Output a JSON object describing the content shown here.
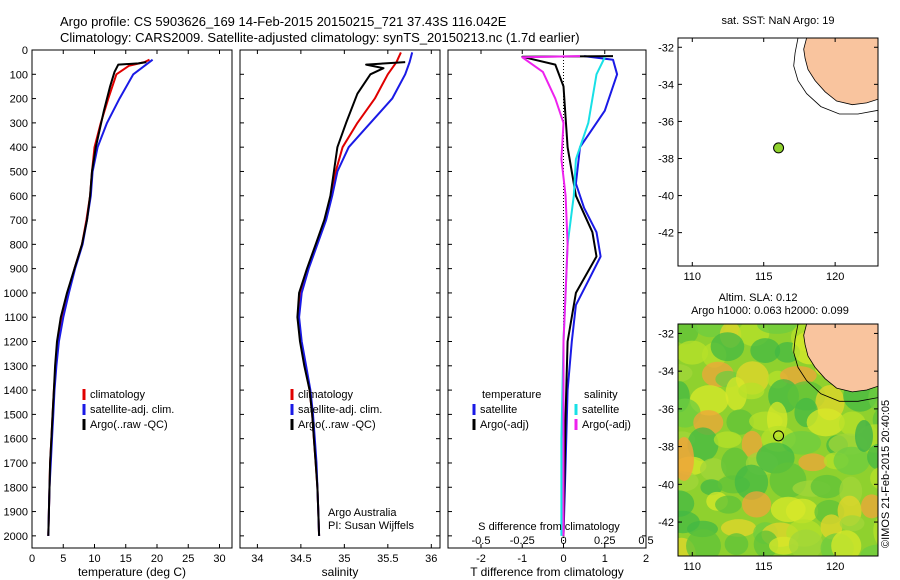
{
  "header": {
    "title_line1": "Argo profile: CS 5903626_169 14-Feb-2015 20150215_721 37.43S 116.042E",
    "title_line2": "Climatology: CARS2009. Satellite-adjusted climatology: synTS_20150213.nc (1.7d earlier)"
  },
  "side_credit": "©IMOS 21-Feb-2015 20:40:05",
  "colors": {
    "climatology": "#e00000",
    "satellite": "#1a1ae6",
    "argo": "#000000",
    "sal_satellite": "#18e0e6",
    "sal_argo": "#ee22ee",
    "land": "#f9c49e"
  },
  "chart_data": [
    {
      "id": "temperature",
      "type": "line",
      "xlabel": "temperature (deg C)",
      "ylabel": "",
      "xlim": [
        0,
        32
      ],
      "ylim": [
        2050,
        0
      ],
      "xticks": [
        0,
        5,
        10,
        15,
        20,
        25,
        30
      ],
      "yticks": [
        0,
        100,
        200,
        300,
        400,
        500,
        600,
        700,
        800,
        900,
        1000,
        1100,
        1200,
        1300,
        1400,
        1500,
        1600,
        1700,
        1800,
        1900,
        2000
      ],
      "legend": [
        "climatology",
        "satellite-adj. clim.",
        "Argo(..raw -QC)"
      ],
      "series": [
        {
          "name": "climatology",
          "color": "climatology",
          "points": [
            [
              18.8,
              40
            ],
            [
              18.0,
              50
            ],
            [
              15.5,
              65
            ],
            [
              13.5,
              100
            ],
            [
              12.2,
              200
            ],
            [
              11.0,
              300
            ],
            [
              10.0,
              400
            ],
            [
              9.6,
              500
            ],
            [
              9.3,
              600
            ],
            [
              8.7,
              700
            ],
            [
              8.0,
              800
            ],
            [
              6.8,
              900
            ],
            [
              5.8,
              1000
            ],
            [
              4.9,
              1100
            ],
            [
              4.2,
              1200
            ],
            [
              3.8,
              1300
            ],
            [
              3.5,
              1400
            ],
            [
              3.3,
              1500
            ],
            [
              3.1,
              1600
            ],
            [
              2.9,
              1700
            ],
            [
              2.8,
              1800
            ],
            [
              2.7,
              1900
            ],
            [
              2.6,
              2000
            ]
          ]
        },
        {
          "name": "satellite-adj. clim.",
          "color": "satellite",
          "points": [
            [
              19.3,
              40
            ],
            [
              18.8,
              50
            ],
            [
              17.5,
              75
            ],
            [
              16.2,
              100
            ],
            [
              14.0,
              200
            ],
            [
              12.0,
              300
            ],
            [
              10.5,
              400
            ],
            [
              9.7,
              500
            ],
            [
              9.4,
              600
            ],
            [
              8.8,
              700
            ],
            [
              8.1,
              800
            ],
            [
              6.9,
              900
            ],
            [
              5.9,
              1000
            ],
            [
              5.0,
              1100
            ],
            [
              4.3,
              1200
            ],
            [
              3.9,
              1300
            ],
            [
              3.6,
              1400
            ],
            [
              3.4,
              1500
            ],
            [
              3.2,
              1600
            ],
            [
              3.0,
              1700
            ],
            [
              2.8,
              1800
            ],
            [
              2.7,
              1900
            ],
            [
              2.6,
              2000
            ]
          ]
        },
        {
          "name": "Argo(..raw -QC)",
          "color": "argo",
          "points": [
            [
              18.3,
              50
            ],
            [
              17.0,
              55
            ],
            [
              13.8,
              60
            ],
            [
              13.2,
              90
            ],
            [
              12.5,
              150
            ],
            [
              11.5,
              250
            ],
            [
              10.2,
              400
            ],
            [
              9.6,
              500
            ],
            [
              9.3,
              600
            ],
            [
              8.8,
              700
            ],
            [
              8.0,
              800
            ],
            [
              6.8,
              900
            ],
            [
              5.6,
              1000
            ],
            [
              4.6,
              1100
            ],
            [
              4.0,
              1200
            ],
            [
              3.7,
              1300
            ],
            [
              3.5,
              1400
            ],
            [
              3.3,
              1500
            ],
            [
              3.1,
              1600
            ],
            [
              2.9,
              1700
            ],
            [
              2.8,
              1800
            ],
            [
              2.7,
              1900
            ],
            [
              2.6,
              2000
            ]
          ]
        }
      ]
    },
    {
      "id": "salinity",
      "type": "line",
      "xlabel": "salinity",
      "xlim": [
        33.8,
        36.1
      ],
      "ylim": [
        2050,
        0
      ],
      "xticks": [
        34,
        34.5,
        35,
        35.5,
        36
      ],
      "legend": [
        "climatology",
        "satellite-adj. clim.",
        "Argo(..raw -QC)"
      ],
      "annotation": [
        "Argo Australia",
        "PI: Susan Wijffels"
      ],
      "series": [
        {
          "name": "climatology",
          "color": "climatology",
          "points": [
            [
              35.65,
              10
            ],
            [
              35.6,
              50
            ],
            [
              35.5,
              100
            ],
            [
              35.35,
              200
            ],
            [
              35.15,
              300
            ],
            [
              34.98,
              400
            ],
            [
              34.9,
              500
            ],
            [
              34.85,
              600
            ],
            [
              34.78,
              700
            ],
            [
              34.68,
              800
            ],
            [
              34.58,
              900
            ],
            [
              34.5,
              1000
            ],
            [
              34.47,
              1100
            ],
            [
              34.5,
              1200
            ],
            [
              34.55,
              1300
            ],
            [
              34.6,
              1400
            ],
            [
              34.63,
              1500
            ],
            [
              34.65,
              1600
            ],
            [
              34.67,
              1700
            ],
            [
              34.69,
              1800
            ],
            [
              34.7,
              1900
            ],
            [
              34.71,
              2000
            ]
          ]
        },
        {
          "name": "satellite-adj. clim.",
          "color": "satellite",
          "points": [
            [
              35.78,
              10
            ],
            [
              35.75,
              50
            ],
            [
              35.7,
              100
            ],
            [
              35.55,
              200
            ],
            [
              35.3,
              300
            ],
            [
              35.05,
              400
            ],
            [
              34.92,
              500
            ],
            [
              34.86,
              600
            ],
            [
              34.79,
              700
            ],
            [
              34.69,
              800
            ],
            [
              34.59,
              900
            ],
            [
              34.51,
              1000
            ],
            [
              34.48,
              1100
            ],
            [
              34.51,
              1200
            ],
            [
              34.56,
              1300
            ],
            [
              34.61,
              1400
            ],
            [
              34.64,
              1500
            ],
            [
              34.66,
              1600
            ],
            [
              34.68,
              1700
            ],
            [
              34.69,
              1800
            ],
            [
              34.7,
              1900
            ],
            [
              34.71,
              2000
            ]
          ]
        },
        {
          "name": "Argo(..raw -QC)",
          "color": "argo",
          "points": [
            [
              35.7,
              50
            ],
            [
              35.25,
              60
            ],
            [
              35.45,
              75
            ],
            [
              35.3,
              100
            ],
            [
              35.15,
              180
            ],
            [
              35.02,
              300
            ],
            [
              34.92,
              400
            ],
            [
              34.88,
              500
            ],
            [
              34.84,
              600
            ],
            [
              34.77,
              700
            ],
            [
              34.67,
              800
            ],
            [
              34.57,
              900
            ],
            [
              34.48,
              1000
            ],
            [
              34.46,
              1100
            ],
            [
              34.49,
              1200
            ],
            [
              34.54,
              1300
            ],
            [
              34.6,
              1400
            ],
            [
              34.63,
              1500
            ],
            [
              34.65,
              1600
            ],
            [
              34.67,
              1700
            ],
            [
              34.69,
              1800
            ],
            [
              34.7,
              1900
            ],
            [
              34.71,
              2000
            ]
          ]
        }
      ]
    },
    {
      "id": "difference",
      "type": "line",
      "xlabel": "T difference from climatology",
      "xlabel_top": "S difference from climatology",
      "xlim": [
        -2.8,
        2.0
      ],
      "ylim": [
        2050,
        0
      ],
      "xticks": [
        -2,
        -1,
        0,
        1,
        2
      ],
      "xticks_s": [
        -0.5,
        -0.25,
        0,
        0.25,
        0.5
      ],
      "legend_temperature": [
        "temperature",
        "satellite",
        "Argo(-adj)"
      ],
      "legend_salinity": [
        "salinity",
        "satellite",
        "Argo(-adj)"
      ],
      "series": [
        {
          "name": "T satellite",
          "color": "satellite",
          "points": [
            [
              0.5,
              25
            ],
            [
              1.2,
              40
            ],
            [
              1.3,
              100
            ],
            [
              1.0,
              250
            ],
            [
              0.4,
              400
            ],
            [
              0.3,
              550
            ],
            [
              0.5,
              650
            ],
            [
              0.8,
              750
            ],
            [
              0.9,
              850
            ],
            [
              0.6,
              950
            ],
            [
              0.3,
              1050
            ],
            [
              0.2,
              1200
            ],
            [
              0.1,
              1400
            ],
            [
              0.05,
              1700
            ],
            [
              0.0,
              2000
            ]
          ]
        },
        {
          "name": "T Argo(-adj)",
          "color": "argo",
          "points": [
            [
              1.2,
              25
            ],
            [
              -1.0,
              28
            ],
            [
              -0.2,
              60
            ],
            [
              0.0,
              150
            ],
            [
              0.1,
              400
            ],
            [
              0.3,
              600
            ],
            [
              0.7,
              750
            ],
            [
              0.8,
              850
            ],
            [
              0.3,
              1000
            ],
            [
              0.1,
              1200
            ],
            [
              0.05,
              1500
            ],
            [
              0.0,
              2000
            ]
          ]
        },
        {
          "name": "S satellite",
          "color": "sal_satellite",
          "points": [
            [
              1.0,
              30
            ],
            [
              0.8,
              100
            ],
            [
              0.6,
              300
            ],
            [
              0.3,
              450
            ],
            [
              0.25,
              600
            ],
            [
              0.1,
              800
            ],
            [
              0.0,
              1200
            ],
            [
              -0.05,
              1600
            ],
            [
              -0.05,
              2000
            ]
          ]
        },
        {
          "name": "S Argo(-adj)",
          "color": "sal_argo",
          "points": [
            [
              0.4,
              25
            ],
            [
              -1.0,
              30
            ],
            [
              -0.5,
              90
            ],
            [
              -0.2,
              200
            ],
            [
              0.0,
              300
            ],
            [
              -0.05,
              450
            ],
            [
              0.05,
              600
            ],
            [
              0.1,
              800
            ],
            [
              0.05,
              1000
            ],
            [
              0.0,
              1200
            ],
            [
              0.0,
              2000
            ]
          ]
        }
      ]
    },
    {
      "id": "map_sst",
      "type": "scatter",
      "title": "sat. SST: NaN  Argo: 19",
      "xlim": [
        109,
        123
      ],
      "ylim": [
        -43.8,
        -31.5
      ],
      "xticks": [
        110,
        115,
        120
      ],
      "yticks": [
        -32,
        -34,
        -36,
        -38,
        -40,
        -42
      ],
      "points": [
        [
          116.04,
          -37.43
        ]
      ]
    },
    {
      "id": "map_sla",
      "type": "heatmap",
      "title_line1": "Altim. SLA: 0.12",
      "title_line2": "Argo h1000: 0.063 h2000: 0.099",
      "xlim": [
        109,
        123
      ],
      "ylim": [
        -43.8,
        -31.5
      ],
      "xticks": [
        110,
        115,
        120
      ],
      "yticks": [
        -32,
        -34,
        -36,
        -38,
        -40,
        -42
      ],
      "points": [
        [
          116.04,
          -37.43
        ]
      ]
    }
  ]
}
